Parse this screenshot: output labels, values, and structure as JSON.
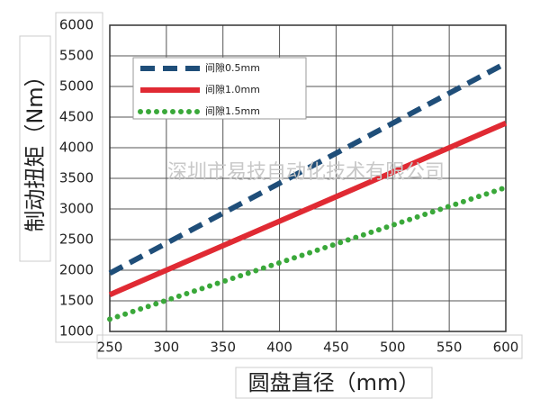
{
  "chart_data": {
    "type": "line",
    "x_label": "圆盘直径（mm）",
    "y_label": "制动扭矩（Nm）",
    "watermark": "深圳市易技自动化技术有限公司",
    "x": [
      250,
      600
    ],
    "series": [
      {
        "name": "间隙0.5mm",
        "color": "#1f4e79",
        "style": "dashed",
        "values": [
          1950,
          5380
        ]
      },
      {
        "name": "间隙1.0mm",
        "color": "#e02a33",
        "style": "solid",
        "values": [
          1600,
          4400
        ]
      },
      {
        "name": "间隙1.5mm",
        "color": "#3aa83a",
        "style": "dotted",
        "values": [
          1200,
          3350
        ]
      }
    ],
    "xlim": [
      250,
      600
    ],
    "xticks": [
      250,
      300,
      350,
      400,
      450,
      500,
      550,
      600
    ],
    "ylim": [
      1000,
      6000
    ],
    "yticks": [
      1000,
      1500,
      2000,
      2500,
      3000,
      3500,
      4000,
      4500,
      5000,
      5500,
      6000
    ],
    "grid": true
  }
}
